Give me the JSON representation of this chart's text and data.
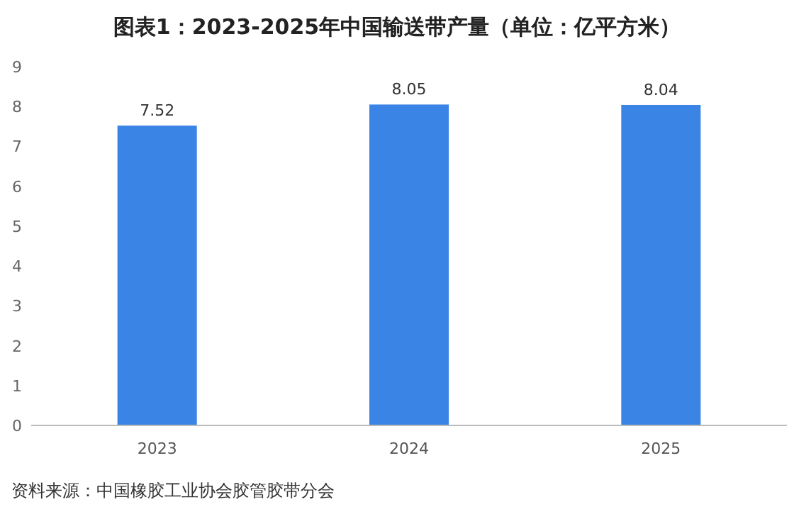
{
  "chart_data": {
    "type": "bar",
    "title": "图表1：2023-2025年中国输送带产量（单位：亿平方米）",
    "categories": [
      "2023",
      "2024",
      "2025"
    ],
    "values": [
      7.52,
      8.05,
      8.04
    ],
    "color": "#3a84e6",
    "ylim": [
      0,
      9
    ],
    "yticks": [
      0,
      1,
      2,
      3,
      4,
      5,
      6,
      7,
      8,
      9
    ],
    "grid": false,
    "data_labels": true,
    "annotations": [
      "资料来源：中国橡胶工业协会胶管胶带分会"
    ]
  }
}
